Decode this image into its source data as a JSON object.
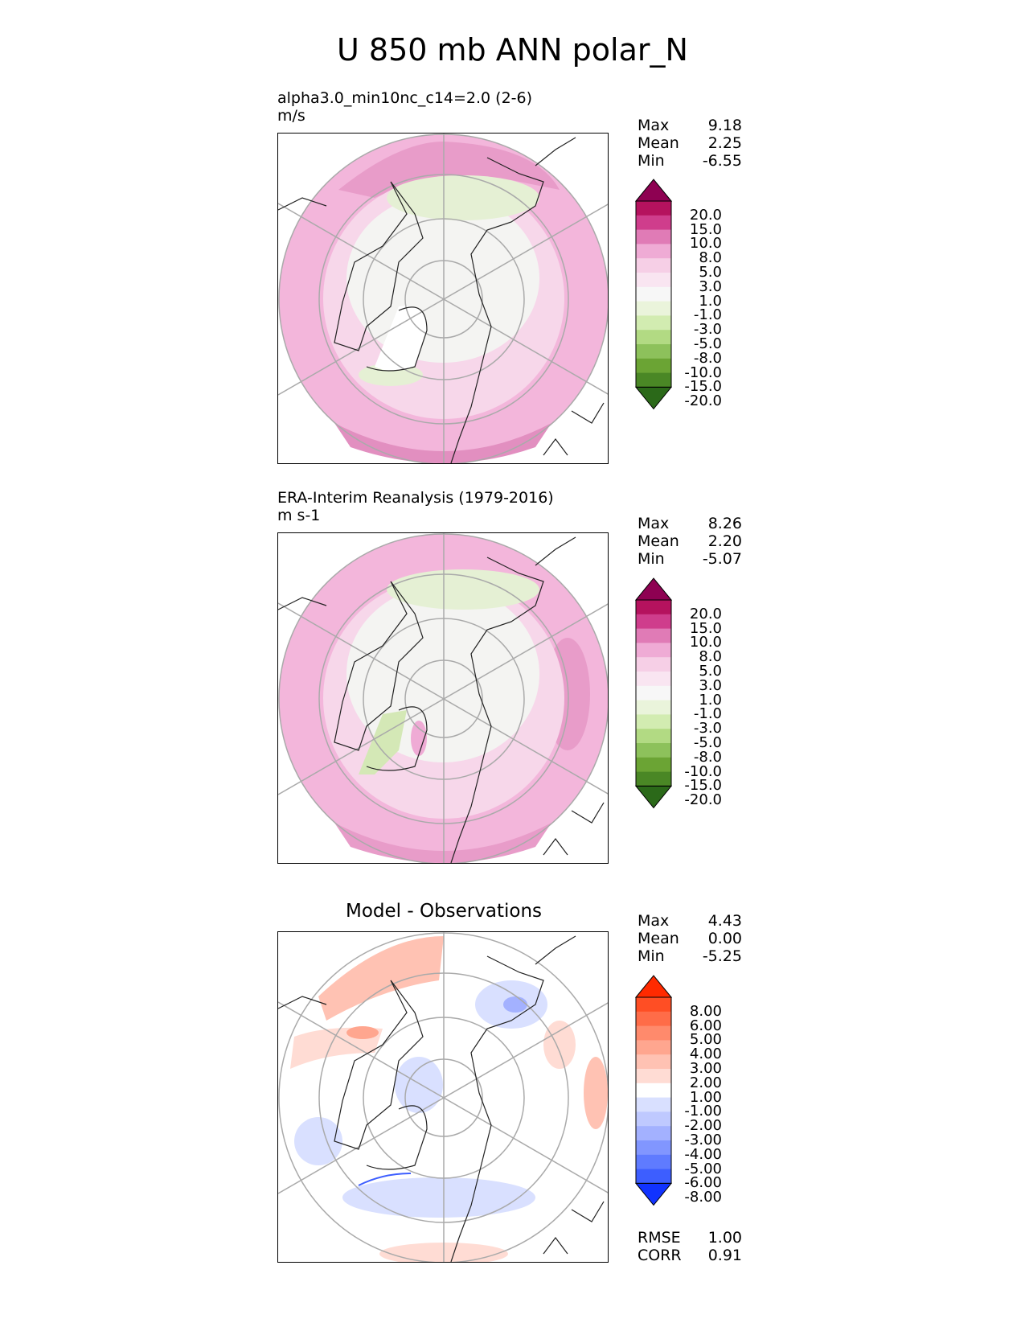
{
  "title": "U 850 mb ANN polar_N",
  "panels": [
    {
      "name": "test",
      "title_lines": [
        "alpha3.0_min10nc_c14=2.0 (2-6)",
        "m/s"
      ],
      "stats": {
        "max_label": "Max",
        "max": "9.18",
        "mean_label": "Mean",
        "mean": "2.25",
        "min_label": "Min",
        "min": "-6.55"
      },
      "colorbar": {
        "levels": [
          "20.0",
          "15.0",
          "10.0",
          "8.0",
          "5.0",
          "3.0",
          "1.0",
          "-1.0",
          "-3.0",
          "-5.0",
          "-8.0",
          "-10.0",
          "-15.0",
          "-20.0"
        ],
        "colors": [
          "#8e0152",
          "#b5125e",
          "#cf3d8c",
          "#e07bb6",
          "#efabd5",
          "#f6cfe6",
          "#f9e5f1",
          "#f7f7f7",
          "#eaf4db",
          "#d2ecb1",
          "#b2da83",
          "#8dc15b",
          "#6ba434",
          "#4a8725",
          "#2b6919"
        ]
      }
    },
    {
      "name": "reference",
      "title_lines": [
        "ERA-Interim Reanalysis (1979-2016)",
        "m s-1"
      ],
      "stats": {
        "max_label": "Max",
        "max": "8.26",
        "mean_label": "Mean",
        "mean": "2.20",
        "min_label": "Min",
        "min": "-5.07"
      },
      "colorbar": {
        "levels": [
          "20.0",
          "15.0",
          "10.0",
          "8.0",
          "5.0",
          "3.0",
          "1.0",
          "-1.0",
          "-3.0",
          "-5.0",
          "-8.0",
          "-10.0",
          "-15.0",
          "-20.0"
        ],
        "colors": [
          "#8e0152",
          "#b5125e",
          "#cf3d8c",
          "#e07bb6",
          "#efabd5",
          "#f6cfe6",
          "#f9e5f1",
          "#f7f7f7",
          "#eaf4db",
          "#d2ecb1",
          "#b2da83",
          "#8dc15b",
          "#6ba434",
          "#4a8725",
          "#2b6919"
        ]
      }
    },
    {
      "name": "difference",
      "title_lines": [
        "Model - Observations"
      ],
      "stats": {
        "max_label": "Max",
        "max": "4.43",
        "mean_label": "Mean",
        "mean": "0.00",
        "min_label": "Min",
        "min": "-5.25"
      },
      "extra_stats": {
        "rmse_label": "RMSE",
        "rmse": "1.00",
        "corr_label": "CORR",
        "corr": "0.91"
      },
      "colorbar": {
        "levels": [
          "8.00",
          "6.00",
          "5.00",
          "4.00",
          "3.00",
          "2.00",
          "1.00",
          "-1.00",
          "-2.00",
          "-3.00",
          "-4.00",
          "-5.00",
          "-6.00",
          "-8.00"
        ],
        "colors": [
          "#ff2a00",
          "#ff4e24",
          "#ff6c48",
          "#ff8a6c",
          "#ffa68f",
          "#ffc2b3",
          "#ffdcd4",
          "#ffffff",
          "#d9e0ff",
          "#bfc9ff",
          "#a3b1ff",
          "#8196ff",
          "#5f7bff",
          "#3d5eff",
          "#1133ff"
        ]
      }
    }
  ],
  "chart_data": [
    {
      "type": "heatmap",
      "title": "alpha3.0_min10nc_c14=2.0 (2-6)",
      "units": "m/s",
      "projection": "north polar stereographic",
      "stats": {
        "max": 9.18,
        "mean": 2.25,
        "min": -6.55
      },
      "contour_levels": [
        -20,
        -15,
        -10,
        -8,
        -5,
        -3,
        -1,
        1,
        3,
        5,
        8,
        10,
        15,
        20
      ]
    },
    {
      "type": "heatmap",
      "title": "ERA-Interim Reanalysis (1979-2016)",
      "units": "m s-1",
      "projection": "north polar stereographic",
      "stats": {
        "max": 8.26,
        "mean": 2.2,
        "min": -5.07
      },
      "contour_levels": [
        -20,
        -15,
        -10,
        -8,
        -5,
        -3,
        -1,
        1,
        3,
        5,
        8,
        10,
        15,
        20
      ]
    },
    {
      "type": "heatmap",
      "title": "Model - Observations",
      "projection": "north polar stereographic",
      "stats": {
        "max": 4.43,
        "mean": 0.0,
        "min": -5.25,
        "rmse": 1.0,
        "corr": 0.91
      },
      "contour_levels": [
        -8,
        -6,
        -5,
        -4,
        -3,
        -2,
        -1,
        1,
        2,
        3,
        4,
        5,
        6,
        8
      ]
    }
  ]
}
